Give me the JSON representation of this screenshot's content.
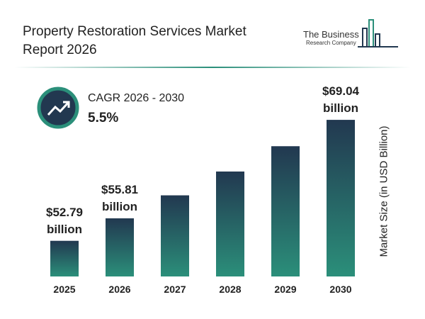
{
  "chart_data": {
    "type": "bar",
    "title": "Property Restoration Services Market Report 2026",
    "logo": {
      "name": "The Business",
      "tagline": "Research Company"
    },
    "cagr_label": "CAGR 2026 - 2030",
    "cagr_value": "5.5%",
    "y_axis_label": "Market Size (in USD Billion)",
    "categories": [
      "2025",
      "2026",
      "2027",
      "2028",
      "2029",
      "2030"
    ],
    "values": [
      52.79,
      55.81,
      58.9,
      62.1,
      65.5,
      69.04
    ],
    "value_labels": [
      "$52.79 billion",
      "$55.81 billion",
      null,
      null,
      null,
      "$69.04 billion"
    ],
    "gradient": [
      "#223850",
      "#2b8f7a"
    ],
    "ylim": [
      48,
      70
    ]
  }
}
